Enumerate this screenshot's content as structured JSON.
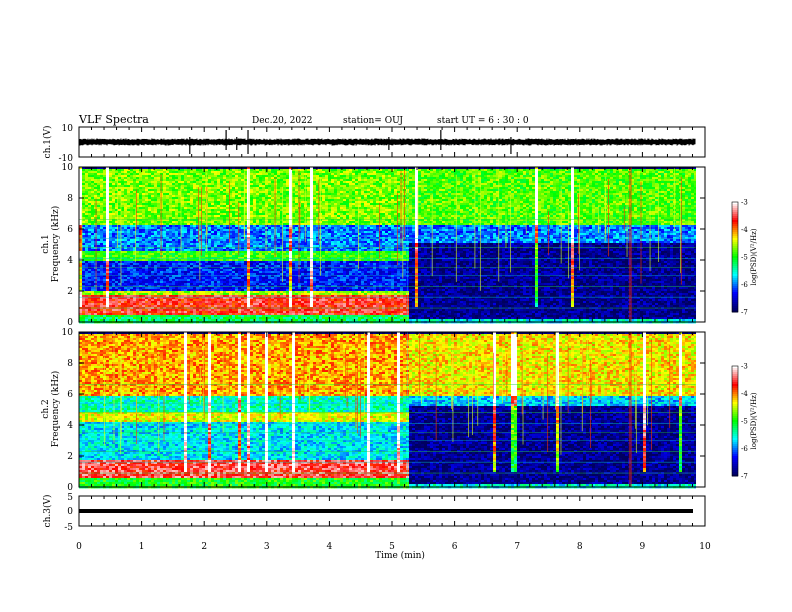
{
  "header": {
    "title": "VLF Spectra",
    "date": "Dec.20, 2022",
    "station": "station= OUJ",
    "start": "start  UT =   6  : 30 : 0"
  },
  "chart_data": [
    {
      "type": "line",
      "name": "ch1-waveform",
      "ylabel": "ch.1(V)",
      "ylim": [
        -10,
        10
      ],
      "yticks": [
        "10",
        "-10"
      ],
      "xlim": [
        0,
        10
      ],
      "baseline": 0,
      "spikes_x": [
        1.77,
        2.35,
        2.52,
        2.7,
        4.95,
        5.78,
        6.9
      ]
    },
    {
      "type": "heatmap",
      "name": "ch1-spectrogram",
      "ylabel": "ch.1\nFrequency (kHz)",
      "ylabel_channel": "ch.1",
      "ylabel_freq": "Frequency (kHz)",
      "ylim": [
        0,
        10
      ],
      "yticks": [
        "0",
        "2",
        "4",
        "6",
        "8",
        "10"
      ],
      "xlim": [
        0,
        10
      ],
      "data_end_min": 9.85,
      "transition_min": 5.25,
      "colorbar": {
        "label": "log(PSD)(V²/Hz)",
        "ticks": [
          "-3",
          "-4",
          "-5",
          "-6",
          "-7"
        ],
        "range": [
          -7,
          -3
        ]
      },
      "bands_before": [
        {
          "f": [
            0,
            0.5
          ],
          "level": -5.2
        },
        {
          "f": [
            0.5,
            1.8
          ],
          "level": -3.6
        },
        {
          "f": [
            1.8,
            2.1
          ],
          "level": -4.6
        },
        {
          "f": [
            2.1,
            4.0
          ],
          "level": -6.3
        },
        {
          "f": [
            4.0,
            4.7
          ],
          "level": -4.9
        },
        {
          "f": [
            4.7,
            6.3
          ],
          "level": -6.0
        },
        {
          "f": [
            6.3,
            10
          ],
          "level": -4.7
        }
      ],
      "bands_after": [
        {
          "f": [
            0,
            0.3
          ],
          "level": -5.6
        },
        {
          "f": [
            0.3,
            5.2
          ],
          "level": -6.8
        },
        {
          "f": [
            5.2,
            6.3
          ],
          "level": -6.0
        },
        {
          "f": [
            6.3,
            10
          ],
          "level": -4.8
        }
      ]
    },
    {
      "type": "heatmap",
      "name": "ch2-spectrogram",
      "ylabel": "ch.2\nFrequency (kHz)",
      "ylabel_channel": "ch.2",
      "ylabel_freq": "Frequency (kHz)",
      "ylim": [
        0,
        10
      ],
      "yticks": [
        "0",
        "2",
        "4",
        "6",
        "8",
        "10"
      ],
      "xlim": [
        0,
        10
      ],
      "data_end_min": 9.85,
      "transition_min": 5.25,
      "colorbar": {
        "label": "log(PSD)(V²/Hz)",
        "ticks": [
          "-3",
          "-4",
          "-5",
          "-6",
          "-7"
        ],
        "range": [
          -7,
          -3
        ]
      },
      "bands_before": [
        {
          "f": [
            0,
            0.6
          ],
          "level": -5.0
        },
        {
          "f": [
            0.6,
            1.8
          ],
          "level": -3.5
        },
        {
          "f": [
            1.8,
            4.2
          ],
          "level": -5.7
        },
        {
          "f": [
            4.2,
            4.9
          ],
          "level": -4.4
        },
        {
          "f": [
            4.9,
            6.0
          ],
          "level": -5.5
        },
        {
          "f": [
            6.0,
            10
          ],
          "level": -4.1
        }
      ],
      "bands_after": [
        {
          "f": [
            0,
            0.3
          ],
          "level": -5.6
        },
        {
          "f": [
            0.3,
            5.3
          ],
          "level": -6.8
        },
        {
          "f": [
            5.3,
            6.0
          ],
          "level": -5.8
        },
        {
          "f": [
            6.0,
            10
          ],
          "level": -4.3
        }
      ]
    },
    {
      "type": "line",
      "name": "ch3-waveform",
      "ylabel": "ch.3(V)",
      "ylim": [
        -5,
        5
      ],
      "yticks": [
        "5",
        "0",
        "-5"
      ],
      "xlim": [
        0,
        10
      ],
      "baseline": 0
    }
  ],
  "xaxis": {
    "label": "Time  (min)",
    "ticks": [
      "0",
      "1",
      "2",
      "3",
      "4",
      "5",
      "6",
      "7",
      "8",
      "9",
      "10"
    ]
  },
  "colors": {
    "colormap": [
      "#000060",
      "#0000ff",
      "#00ffff",
      "#00ff00",
      "#ffff00",
      "#ff0000",
      "#ffffff"
    ]
  }
}
